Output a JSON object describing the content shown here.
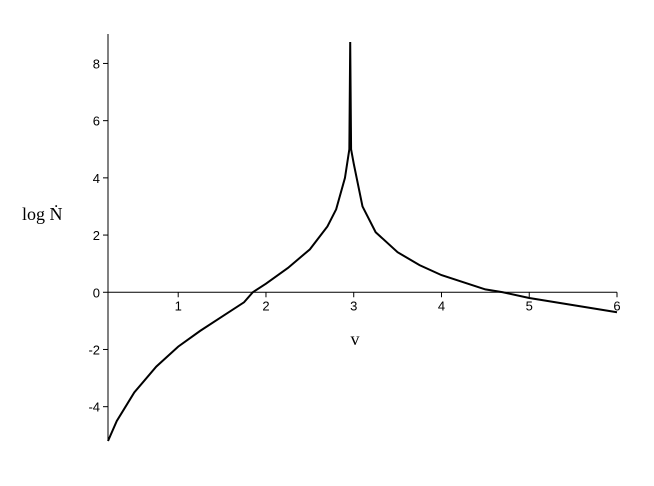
{
  "chart_data": {
    "type": "line",
    "color": "#000000",
    "x_label": "v",
    "y_label": "log Ṅ",
    "x": [
      0.2,
      0.3,
      0.5,
      0.75,
      1,
      1.25,
      1.5,
      1.75,
      1.85,
      2,
      2.25,
      2.5,
      2.7,
      2.8,
      2.9,
      2.95,
      2.96,
      2.97,
      3.0,
      3.1,
      3.25,
      3.5,
      3.75,
      4,
      4.5,
      4.7,
      5,
      5.5,
      6
    ],
    "values": [
      -5.2,
      -4.5,
      -3.5,
      -2.6,
      -1.9,
      -1.35,
      -0.85,
      -0.35,
      0,
      0.3,
      0.85,
      1.5,
      2.3,
      2.9,
      4.0,
      5.0,
      8.75,
      5.0,
      4.5,
      3.0,
      2.1,
      1.4,
      0.95,
      0.6,
      0.1,
      0,
      -0.2,
      -0.45,
      -0.7
    ],
    "xlim": [
      0.2,
      6
    ],
    "ylim": [
      -5.2,
      8.75
    ],
    "xticks": [
      1,
      2,
      3,
      4,
      5,
      6
    ],
    "yticks": [
      -4,
      -2,
      0,
      2,
      4,
      6,
      8
    ]
  }
}
